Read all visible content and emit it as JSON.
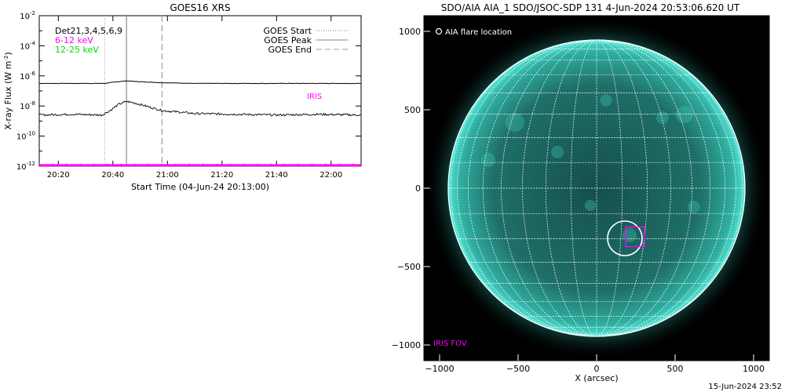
{
  "chart_data": [
    {
      "type": "line",
      "title": "GOES16 XRS",
      "xlabel": "Start Time (04-Jun-24 20:13:00)",
      "ylabel": "X-ray Flux (W m",
      "ylabel_sup": "-2",
      "ylabel_close": ")",
      "ylog": true,
      "ylim_exp": [
        -12,
        -2
      ],
      "ytick_exps": [
        -12,
        -10,
        -8,
        -6,
        -4,
        -2
      ],
      "ytick_base": "10",
      "xlim_min": [
        1273,
        1391
      ],
      "xtick_min": [
        1280,
        1300,
        1320,
        1340,
        1360,
        1380
      ],
      "xtick_labels": [
        "20:20",
        "20:40",
        "21:00",
        "21:20",
        "21:40",
        "22:00"
      ],
      "detectors_label": "Det21,3,4,5,6,9",
      "legend": [
        "6-12 keV",
        "12-25 keV"
      ],
      "legend_right": [
        "GOES Start",
        "GOES Peak",
        "GOES End"
      ],
      "event_min": {
        "start": 1297,
        "peak": 1305,
        "end": 1318
      },
      "iris_label": "IRIS",
      "iris_window_min": [
        1273,
        1391
      ],
      "colors": {
        "low": "#ff00ff",
        "high": "#00ff00",
        "series": "#000000"
      },
      "series": [
        {
          "name": "6-12 keV",
          "x_min": [
            1273,
            1297,
            1301,
            1305,
            1309,
            1318,
            1330,
            1350,
            1370,
            1391
          ],
          "log_y": [
            -6.5,
            -6.5,
            -6.4,
            -6.33,
            -6.38,
            -6.45,
            -6.5,
            -6.5,
            -6.5,
            -6.5
          ]
        },
        {
          "name": "12-25 keV",
          "x_min": [
            1273,
            1285,
            1296,
            1299,
            1302,
            1305,
            1308,
            1312,
            1318,
            1330,
            1345,
            1360,
            1375,
            1391
          ],
          "log_y": [
            -8.6,
            -8.55,
            -8.6,
            -8.3,
            -7.9,
            -7.7,
            -7.8,
            -8.0,
            -8.3,
            -8.5,
            -8.55,
            -8.6,
            -8.55,
            -8.6
          ]
        }
      ]
    },
    {
      "type": "scatter",
      "title": "SDO/AIA AIA_1 SDO/JSOC-SDP 131  4-Jun-2024 20:53:06.620 UT",
      "xlabel": "X (arcsec)",
      "ylabel": "",
      "xlim": [
        -1100,
        1100
      ],
      "ylim": [
        -1100,
        1100
      ],
      "xticks": [
        -1000,
        -500,
        0,
        500,
        1000
      ],
      "yticks": [
        1000,
        500,
        0,
        -500,
        -1000
      ],
      "solar_radius_arcsec": 945,
      "grid_step_deg": 10,
      "flare_location": {
        "x": 180,
        "y": -320,
        "r": 110
      },
      "iris_fov": {
        "x": 245,
        "y": -310,
        "w": 120,
        "h": 125
      },
      "legend_flare": "AIA flare location",
      "legend_iris": "IRIS FOV",
      "colors": {
        "background": "#000000",
        "disk": "#1f8f88",
        "limb": "#3fe0d0",
        "grid": "#ffffff",
        "iris": "#ff00ff"
      }
    }
  ],
  "footer_timestamp": "15-Jun-2024 23:52"
}
